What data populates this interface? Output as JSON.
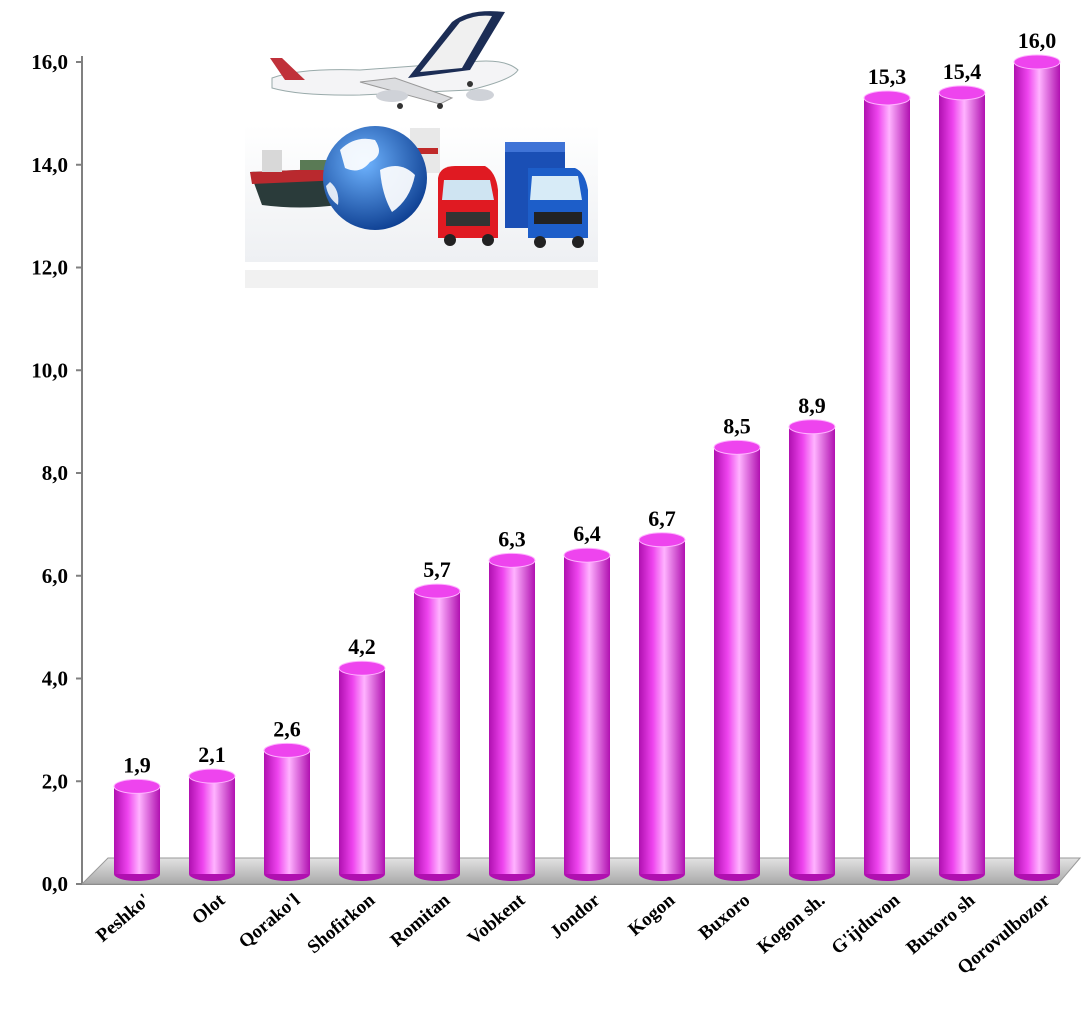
{
  "chart_data": {
    "type": "bar",
    "categories": [
      "Peshko'",
      "Olot",
      "Qorako'l",
      "Shofirkon",
      "Romitan",
      "Vobkent",
      "Jondor",
      "Kogon",
      "Buxoro",
      "Kogon sh.",
      "G'ijduvon",
      "Buxoro sh",
      "Qorovulbozor"
    ],
    "values": [
      1.9,
      2.1,
      2.6,
      4.2,
      5.7,
      6.3,
      6.4,
      6.7,
      8.5,
      8.9,
      15.3,
      15.4,
      16.0
    ],
    "value_labels": [
      "1,9",
      "2,1",
      "2,6",
      "4,2",
      "5,7",
      "6,3",
      "6,4",
      "6,7",
      "8,5",
      "8,9",
      "15,3",
      "15,4",
      "16,0"
    ],
    "y_ticks": [
      "0,0",
      "2,0",
      "4,0",
      "6,0",
      "8,0",
      "10,0",
      "12,0",
      "14,0",
      "16,0"
    ],
    "ylim": [
      0,
      16
    ],
    "title": "",
    "xlabel": "",
    "ylabel": "",
    "grid": false,
    "legend": "none",
    "bar_style": "3d-cylinder",
    "colors": {
      "bar": "#ee44ee",
      "bar_light": "#ffb3ff",
      "bar_dark": "#b010b0",
      "floor": "#c8c8c8",
      "axis": "#808080"
    }
  },
  "illustration": {
    "icon": "transport-logistics-icon"
  }
}
